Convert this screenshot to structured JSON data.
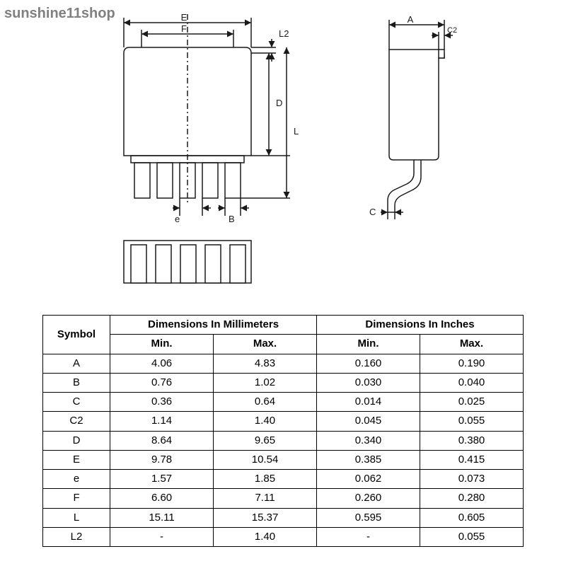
{
  "watermark": "sunshine11shop",
  "diagram": {
    "stroke": "#1a1a1a",
    "stroke_width": 1.5,
    "labels_fontsize": 12,
    "front_view": {
      "E_label": "E",
      "F_label": "F",
      "L2_label": "L2",
      "D_label": "D",
      "L_label": "L",
      "e_label": "e",
      "B_label": "B"
    },
    "side_view": {
      "A_label": "A",
      "C2_label": "C2",
      "C_label": "C"
    }
  },
  "table": {
    "symbol_header": "Symbol",
    "mm_header": "Dimensions In Millimeters",
    "in_header": "Dimensions In Inches",
    "min_header": "Min.",
    "max_header": "Max.",
    "rows": [
      {
        "sym": "A",
        "mm_min": "4.06",
        "mm_max": "4.83",
        "in_min": "0.160",
        "in_max": "0.190"
      },
      {
        "sym": "B",
        "mm_min": "0.76",
        "mm_max": "1.02",
        "in_min": "0.030",
        "in_max": "0.040"
      },
      {
        "sym": "C",
        "mm_min": "0.36",
        "mm_max": "0.64",
        "in_min": "0.014",
        "in_max": "0.025"
      },
      {
        "sym": "C2",
        "mm_min": "1.14",
        "mm_max": "1.40",
        "in_min": "0.045",
        "in_max": "0.055"
      },
      {
        "sym": "D",
        "mm_min": "8.64",
        "mm_max": "9.65",
        "in_min": "0.340",
        "in_max": "0.380"
      },
      {
        "sym": "E",
        "mm_min": "9.78",
        "mm_max": "10.54",
        "in_min": "0.385",
        "in_max": "0.415"
      },
      {
        "sym": "e",
        "mm_min": "1.57",
        "mm_max": "1.85",
        "in_min": "0.062",
        "in_max": "0.073"
      },
      {
        "sym": "F",
        "mm_min": "6.60",
        "mm_max": "7.11",
        "in_min": "0.260",
        "in_max": "0.280"
      },
      {
        "sym": "L",
        "mm_min": "15.11",
        "mm_max": "15.37",
        "in_min": "0.595",
        "in_max": "0.605"
      },
      {
        "sym": "L2",
        "mm_min": "-",
        "mm_max": "1.40",
        "in_min": "-",
        "in_max": "0.055"
      }
    ]
  }
}
